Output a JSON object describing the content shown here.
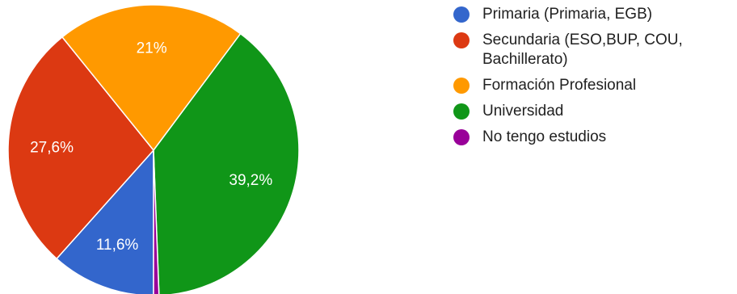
{
  "chart_data": {
    "type": "pie",
    "title": "",
    "start_angle_deg": 90,
    "direction": "clockwise",
    "slices": [
      {
        "label": "Primaria (Primaria, EGB)",
        "value": 11.6,
        "display": "11,6%",
        "color": "#3366cc"
      },
      {
        "label": "Secundaria (ESO,BUP, COU, Bachillerato)",
        "value": 27.6,
        "display": "27,6%",
        "color": "#dc3912"
      },
      {
        "label": "Formación Profesional",
        "value": 21.0,
        "display": "21%",
        "color": "#ff9900"
      },
      {
        "label": "Universidad",
        "value": 39.2,
        "display": "39,2%",
        "color": "#109618"
      },
      {
        "label": "No tengo estudios",
        "value": 0.6,
        "display": "",
        "color": "#990099"
      }
    ],
    "legend": {
      "position": "right",
      "items": [
        {
          "label": "Primaria (Primaria, EGB)",
          "line1": "Primaria (Primaria, EGB)",
          "line2": "",
          "color": "#3366cc"
        },
        {
          "label": "Secundaria (ESO,BUP, COU, Bachillerato)",
          "line1": "Secundaria (ESO,BUP, COU,",
          "line2": "Bachillerato)",
          "color": "#dc3912"
        },
        {
          "label": "Formación Profesional",
          "line1": "Formación Profesional",
          "line2": "",
          "color": "#ff9900"
        },
        {
          "label": "Universidad",
          "line1": "Universidad",
          "line2": "",
          "color": "#109618"
        },
        {
          "label": "No tengo estudios",
          "line1": "No tengo estudios",
          "line2": "",
          "color": "#990099"
        }
      ]
    }
  }
}
